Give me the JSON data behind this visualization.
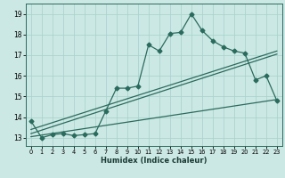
{
  "title": "",
  "xlabel": "Humidex (Indice chaleur)",
  "ylabel": "",
  "bg_color": "#cce8e4",
  "grid_color": "#aad4ce",
  "line_color": "#2a6b5e",
  "xlim": [
    -0.5,
    23.5
  ],
  "ylim": [
    12.6,
    19.5
  ],
  "xticks": [
    0,
    1,
    2,
    3,
    4,
    5,
    6,
    7,
    8,
    9,
    10,
    11,
    12,
    13,
    14,
    15,
    16,
    17,
    18,
    19,
    20,
    21,
    22,
    23
  ],
  "yticks": [
    13,
    14,
    15,
    16,
    17,
    18,
    19
  ],
  "main_x": [
    0,
    1,
    2,
    3,
    4,
    5,
    6,
    7,
    8,
    9,
    10,
    11,
    12,
    13,
    14,
    15,
    16,
    17,
    18,
    19,
    20,
    21,
    22,
    23
  ],
  "main_y": [
    13.8,
    13.0,
    13.15,
    13.2,
    13.1,
    13.15,
    13.2,
    14.3,
    15.4,
    15.4,
    15.5,
    17.5,
    17.2,
    18.05,
    18.1,
    19.0,
    18.2,
    17.7,
    17.4,
    17.2,
    17.1,
    15.8,
    16.0,
    14.8
  ],
  "trend1_x": [
    0,
    23
  ],
  "trend1_y": [
    13.4,
    17.2
  ],
  "trend2_x": [
    0,
    23
  ],
  "trend2_y": [
    13.2,
    17.05
  ],
  "trend3_x": [
    0,
    23
  ],
  "trend3_y": [
    13.05,
    14.85
  ],
  "marker": "D",
  "markersize": 2.5,
  "linewidth": 0.9
}
